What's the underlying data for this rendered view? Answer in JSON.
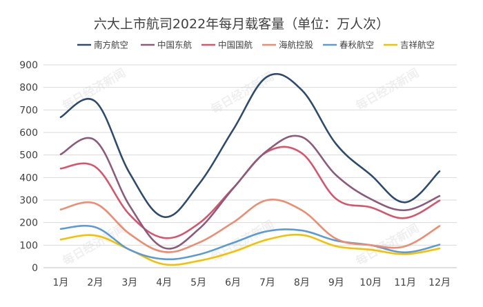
{
  "chart_data": {
    "type": "line",
    "title": "六大上市航司2022年每月载客量（单位：万人次）",
    "xlabel": "",
    "ylabel": "",
    "categories": [
      "1月",
      "2月",
      "3月",
      "4月",
      "5月",
      "6月",
      "7月",
      "8月",
      "9月",
      "10月",
      "11月",
      "12月"
    ],
    "ylim": [
      0,
      900
    ],
    "yticks": [
      0,
      100,
      200,
      300,
      400,
      500,
      600,
      700,
      800,
      900
    ],
    "grid": true,
    "legend_position": "top",
    "series": [
      {
        "name": "南方航空",
        "color": "#2e4b6f",
        "values": [
          668,
          738,
          420,
          225,
          368,
          610,
          848,
          788,
          548,
          412,
          290,
          428
        ]
      },
      {
        "name": "中国东航",
        "color": "#8c5a7a",
        "values": [
          503,
          565,
          275,
          88,
          170,
          350,
          520,
          580,
          410,
          305,
          255,
          318
        ]
      },
      {
        "name": "中国国航",
        "color": "#d9536b",
        "values": [
          440,
          448,
          235,
          132,
          195,
          352,
          515,
          508,
          305,
          268,
          220,
          298
        ]
      },
      {
        "name": "海航控股",
        "color": "#ef8b6e",
        "values": [
          258,
          285,
          150,
          70,
          110,
          200,
          300,
          255,
          128,
          100,
          95,
          185
        ]
      },
      {
        "name": "春秋航空",
        "color": "#5b9bd5",
        "values": [
          172,
          180,
          80,
          38,
          58,
          110,
          162,
          165,
          120,
          100,
          68,
          102
        ]
      },
      {
        "name": "吉祥航空",
        "color": "#f5c000",
        "values": [
          125,
          143,
          80,
          15,
          30,
          70,
          125,
          145,
          95,
          80,
          60,
          85
        ]
      }
    ]
  },
  "watermark": "每日经济新闻"
}
